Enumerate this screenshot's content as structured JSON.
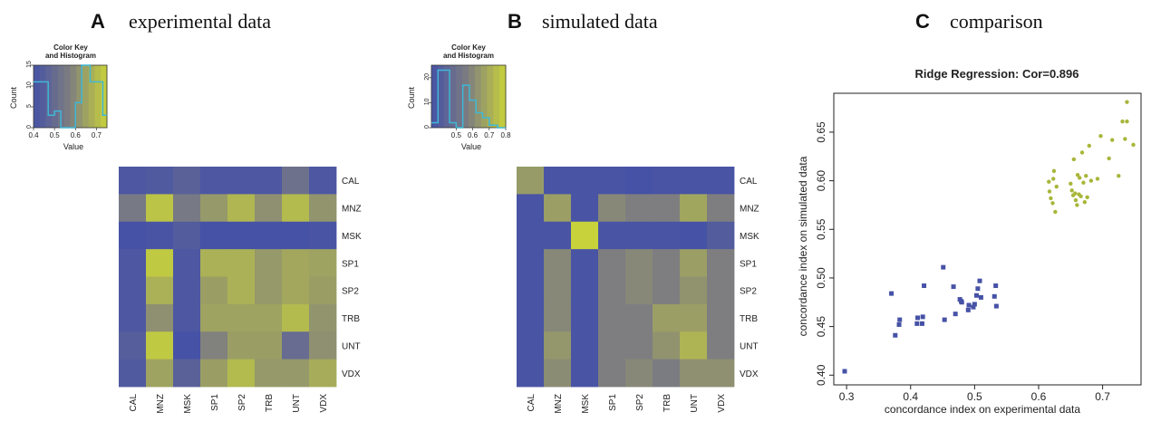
{
  "panels": {
    "a": {
      "letter": "A",
      "title": "experimental data"
    },
    "b": {
      "letter": "B",
      "title": "simulated data"
    },
    "c": {
      "letter": "C",
      "title": "comparison"
    }
  },
  "color_key": {
    "title_line1": "Color Key",
    "title_line2": "and Histogram",
    "ylabel": "Count",
    "xlabel": "Value"
  },
  "palette": {
    "low": "#4652a6",
    "mid": "#7f7f7f",
    "high": "#c8d23a",
    "hist_line": "#3fb7d6",
    "scatter_low": "#4652a6",
    "scatter_high": "#a8b63a"
  },
  "chart_data": [
    {
      "type": "heatmap",
      "panel": "A",
      "rows": [
        "CAL",
        "MNZ",
        "MSK",
        "SP1",
        "SP2",
        "TRB",
        "UNT",
        "VDX"
      ],
      "cols": [
        "CAL",
        "MNZ",
        "MSK",
        "SP1",
        "SP2",
        "TRB",
        "UNT",
        "VDX"
      ],
      "matrix": [
        [
          0.42,
          0.43,
          0.46,
          0.42,
          0.42,
          0.42,
          0.52,
          0.42
        ],
        [
          0.55,
          0.72,
          0.55,
          0.63,
          0.69,
          0.61,
          0.7,
          0.62
        ],
        [
          0.4,
          0.41,
          0.44,
          0.4,
          0.4,
          0.4,
          0.4,
          0.41
        ],
        [
          0.42,
          0.73,
          0.42,
          0.68,
          0.68,
          0.63,
          0.66,
          0.65
        ],
        [
          0.42,
          0.68,
          0.42,
          0.64,
          0.68,
          0.63,
          0.66,
          0.64
        ],
        [
          0.42,
          0.61,
          0.42,
          0.65,
          0.65,
          0.65,
          0.7,
          0.62
        ],
        [
          0.45,
          0.73,
          0.4,
          0.58,
          0.64,
          0.64,
          0.5,
          0.61
        ],
        [
          0.43,
          0.65,
          0.46,
          0.64,
          0.7,
          0.63,
          0.63,
          0.67
        ]
      ],
      "color_key": {
        "xlim": [
          0.4,
          0.75
        ],
        "xticks": [
          "0.4",
          "0.5",
          "0.6",
          "0.7"
        ],
        "ylim": [
          0,
          15
        ],
        "yticks": [
          "0",
          "5",
          "10",
          "15"
        ],
        "histogram": [
          {
            "x": 0.4,
            "y": 11
          },
          {
            "x": 0.47,
            "y": 3
          },
          {
            "x": 0.5,
            "y": 4
          },
          {
            "x": 0.53,
            "y": 0
          },
          {
            "x": 0.6,
            "y": 6
          },
          {
            "x": 0.63,
            "y": 15
          },
          {
            "x": 0.67,
            "y": 11
          },
          {
            "x": 0.73,
            "y": 3
          }
        ]
      }
    },
    {
      "type": "heatmap",
      "panel": "B",
      "rows": [
        "CAL",
        "MNZ",
        "MSK",
        "SP1",
        "SP2",
        "TRB",
        "UNT",
        "VDX"
      ],
      "cols": [
        "CAL",
        "MNZ",
        "MSK",
        "SP1",
        "SP2",
        "TRB",
        "UNT",
        "VDX"
      ],
      "matrix": [
        [
          0.65,
          0.36,
          0.36,
          0.36,
          0.35,
          0.36,
          0.36,
          0.36
        ],
        [
          0.36,
          0.66,
          0.36,
          0.6,
          0.57,
          0.57,
          0.68,
          0.57
        ],
        [
          0.36,
          0.36,
          0.8,
          0.36,
          0.36,
          0.36,
          0.35,
          0.4
        ],
        [
          0.36,
          0.6,
          0.36,
          0.57,
          0.6,
          0.57,
          0.66,
          0.57
        ],
        [
          0.36,
          0.6,
          0.36,
          0.57,
          0.6,
          0.57,
          0.63,
          0.57
        ],
        [
          0.36,
          0.6,
          0.36,
          0.57,
          0.57,
          0.66,
          0.66,
          0.57
        ],
        [
          0.36,
          0.64,
          0.36,
          0.57,
          0.57,
          0.63,
          0.72,
          0.57
        ],
        [
          0.36,
          0.61,
          0.36,
          0.57,
          0.6,
          0.56,
          0.62,
          0.62
        ]
      ],
      "color_key": {
        "xlim": [
          0.35,
          0.8
        ],
        "xticks": [
          "0.5",
          "0.6",
          "0.7",
          "0.8"
        ],
        "ylim": [
          0,
          25
        ],
        "yticks": [
          "0",
          "10",
          "20"
        ],
        "histogram": [
          {
            "x": 0.35,
            "y": 2
          },
          {
            "x": 0.39,
            "y": 23
          },
          {
            "x": 0.46,
            "y": 2
          },
          {
            "x": 0.5,
            "y": 0
          },
          {
            "x": 0.54,
            "y": 17
          },
          {
            "x": 0.58,
            "y": 11
          },
          {
            "x": 0.62,
            "y": 6
          },
          {
            "x": 0.66,
            "y": 4
          },
          {
            "x": 0.7,
            "y": 1
          },
          {
            "x": 0.75,
            "y": 0
          }
        ]
      }
    },
    {
      "type": "scatter",
      "panel": "C",
      "title": "Ridge Regression: Cor=0.896",
      "xlabel": "concordance index on experimental data",
      "ylabel": "concordance index on simulated data",
      "xlim": [
        0.28,
        0.76
      ],
      "ylim": [
        0.39,
        0.69
      ],
      "xticks": [
        "0.3",
        "0.4",
        "0.5",
        "0.6",
        "0.7"
      ],
      "yticks": [
        "0.40",
        "0.45",
        "0.50",
        "0.55",
        "0.60",
        "0.65"
      ],
      "series": [
        {
          "marker": "square",
          "color": "#4652a6",
          "points": [
            [
              0.297,
              0.404
            ],
            [
              0.37,
              0.484
            ],
            [
              0.376,
              0.441
            ],
            [
              0.382,
              0.452
            ],
            [
              0.383,
              0.457
            ],
            [
              0.41,
              0.453
            ],
            [
              0.411,
              0.459
            ],
            [
              0.418,
              0.453
            ],
            [
              0.419,
              0.46
            ],
            [
              0.421,
              0.492
            ],
            [
              0.451,
              0.511
            ],
            [
              0.453,
              0.457
            ],
            [
              0.467,
              0.491
            ],
            [
              0.47,
              0.463
            ],
            [
              0.477,
              0.478
            ],
            [
              0.479,
              0.476
            ],
            [
              0.48,
              0.475
            ],
            [
              0.49,
              0.467
            ],
            [
              0.491,
              0.472
            ],
            [
              0.498,
              0.47
            ],
            [
              0.5,
              0.473
            ],
            [
              0.503,
              0.482
            ],
            [
              0.505,
              0.489
            ],
            [
              0.508,
              0.497
            ],
            [
              0.51,
              0.48
            ],
            [
              0.531,
              0.481
            ],
            [
              0.533,
              0.492
            ],
            [
              0.534,
              0.471
            ]
          ]
        },
        {
          "marker": "circle",
          "color": "#a8b63a",
          "points": [
            [
              0.616,
              0.599
            ],
            [
              0.617,
              0.589
            ],
            [
              0.619,
              0.582
            ],
            [
              0.622,
              0.577
            ],
            [
              0.623,
              0.602
            ],
            [
              0.624,
              0.61
            ],
            [
              0.626,
              0.568
            ],
            [
              0.628,
              0.594
            ],
            [
              0.65,
              0.597
            ],
            [
              0.652,
              0.59
            ],
            [
              0.654,
              0.585
            ],
            [
              0.655,
              0.622
            ],
            [
              0.657,
              0.587
            ],
            [
              0.658,
              0.58
            ],
            [
              0.66,
              0.575
            ],
            [
              0.661,
              0.606
            ],
            [
              0.663,
              0.586
            ],
            [
              0.664,
              0.603
            ],
            [
              0.666,
              0.584
            ],
            [
              0.668,
              0.629
            ],
            [
              0.67,
              0.598
            ],
            [
              0.672,
              0.578
            ],
            [
              0.674,
              0.605
            ],
            [
              0.676,
              0.583
            ],
            [
              0.679,
              0.636
            ],
            [
              0.682,
              0.6
            ],
            [
              0.692,
              0.602
            ],
            [
              0.697,
              0.646
            ],
            [
              0.71,
              0.623
            ],
            [
              0.725,
              0.605
            ],
            [
              0.731,
              0.661
            ],
            [
              0.738,
              0.661
            ],
            [
              0.738,
              0.681
            ],
            [
              0.748,
              0.637
            ],
            [
              0.735,
              0.643
            ],
            [
              0.715,
              0.642
            ]
          ]
        }
      ]
    }
  ]
}
